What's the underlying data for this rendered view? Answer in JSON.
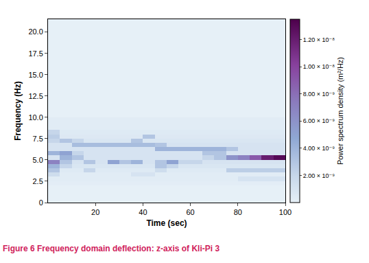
{
  "chart_data": {
    "type": "heatmap",
    "caption": "Figure 6 Frequency domain deflection: z-axis of Kli-Pi 3",
    "x_label": "Time (sec)",
    "y_label": "Frequency (Hz)",
    "x": [
      2.5,
      7.5,
      12.5,
      17.5,
      22.5,
      27.5,
      32.5,
      37.5,
      42.5,
      47.5,
      52.5,
      57.5,
      62.5,
      67.5,
      72.5,
      77.5,
      82.5,
      87.5,
      92.5,
      97.5
    ],
    "y": [
      2.25,
      2.75,
      3.25,
      3.75,
      4.25,
      4.75,
      5.25,
      5.75,
      6.25,
      6.75,
      7.25,
      7.75,
      8.25,
      8.75,
      9.25,
      9.75
    ],
    "z": [
      [
        2e-10,
        2e-10,
        2e-10,
        2e-10,
        2e-10,
        2e-10,
        2e-10,
        2e-10,
        2e-10,
        2e-10,
        2e-10,
        2e-10,
        2e-10,
        2e-10,
        2e-10,
        2e-10,
        2e-10,
        2e-10,
        2e-10,
        2e-10
      ],
      [
        3e-10,
        3e-10,
        3e-10,
        3e-10,
        3e-10,
        3e-10,
        3e-10,
        3e-10,
        3e-10,
        3e-10,
        3e-10,
        3e-10,
        3e-10,
        3e-10,
        3e-10,
        3e-10,
        1e-09,
        1e-09,
        1e-09,
        1e-09
      ],
      [
        1.5e-09,
        3e-10,
        3e-10,
        3e-10,
        3e-10,
        3e-10,
        3e-10,
        1e-09,
        1e-09,
        3e-10,
        3e-10,
        3e-10,
        3e-10,
        3e-10,
        3e-10,
        3e-10,
        3e-10,
        3e-10,
        3e-10,
        3e-10
      ],
      [
        3e-09,
        5e-10,
        5e-10,
        2e-09,
        5e-10,
        5e-10,
        5e-10,
        5e-10,
        5e-10,
        1.5e-09,
        5e-10,
        5e-10,
        5e-10,
        5e-10,
        5e-10,
        2.5e-09,
        2.5e-09,
        2.5e-09,
        2.5e-09,
        2.5e-09
      ],
      [
        4e-09,
        2e-09,
        8e-10,
        8e-10,
        8e-10,
        8e-10,
        8e-10,
        8e-10,
        8e-10,
        3e-09,
        2e-09,
        8e-10,
        8e-10,
        8e-10,
        8e-10,
        8e-10,
        8e-10,
        8e-10,
        8e-10,
        8e-10
      ],
      [
        7e-09,
        3e-09,
        1e-09,
        3e-09,
        1e-09,
        5e-09,
        3e-09,
        4e-09,
        1e-09,
        3e-09,
        5e-09,
        2e-09,
        2e-09,
        1e-09,
        1e-09,
        1e-09,
        1e-09,
        1e-09,
        1e-09,
        1e-09
      ],
      [
        1e-09,
        4e-09,
        3e-09,
        1e-09,
        1e-09,
        1e-09,
        1e-09,
        1e-09,
        1e-09,
        1e-09,
        1e-09,
        1e-09,
        1e-09,
        2e-09,
        3e-09,
        6e-09,
        7e-09,
        9e-09,
        1.2e-08,
        1.3e-08
      ],
      [
        4e-09,
        5e-09,
        2e-09,
        1e-09,
        1e-09,
        1e-09,
        1e-09,
        1e-09,
        1e-09,
        1e-09,
        1e-09,
        1e-09,
        1e-09,
        3e-09,
        3e-09,
        1e-09,
        1e-09,
        1e-09,
        1e-09,
        1e-09
      ],
      [
        1e-09,
        1e-09,
        1e-09,
        1e-09,
        1e-09,
        1e-09,
        1e-09,
        1e-09,
        1e-09,
        4e-09,
        4e-09,
        4e-09,
        4e-09,
        4e-09,
        4e-09,
        3e-09,
        1e-09,
        1e-09,
        1e-09,
        1e-09
      ],
      [
        1e-09,
        1e-09,
        3.5e-09,
        3.5e-09,
        3.5e-09,
        3.5e-09,
        3.5e-09,
        3.5e-09,
        3.5e-09,
        3e-09,
        1e-09,
        1e-09,
        1e-09,
        1e-09,
        1e-09,
        1e-09,
        1e-09,
        1e-09,
        1e-09,
        1e-09
      ],
      [
        2e-09,
        3e-09,
        2e-09,
        8e-10,
        8e-10,
        8e-10,
        8e-10,
        3e-09,
        8e-10,
        8e-10,
        8e-10,
        8e-10,
        8e-10,
        8e-10,
        8e-10,
        8e-10,
        8e-10,
        8e-10,
        8e-10,
        8e-10
      ],
      [
        2.5e-09,
        6e-10,
        6e-10,
        6e-10,
        6e-10,
        6e-10,
        6e-10,
        6e-10,
        3e-09,
        6e-10,
        6e-10,
        6e-10,
        6e-10,
        6e-10,
        6e-10,
        6e-10,
        6e-10,
        6e-10,
        6e-10,
        6e-10
      ],
      [
        2e-09,
        5e-10,
        5e-10,
        5e-10,
        5e-10,
        5e-10,
        5e-10,
        5e-10,
        5e-10,
        5e-10,
        5e-10,
        5e-10,
        5e-10,
        5e-10,
        5e-10,
        5e-10,
        5e-10,
        5e-10,
        5e-10,
        5e-10
      ],
      [
        3e-10,
        3e-10,
        3e-10,
        3e-10,
        3e-10,
        3e-10,
        3e-10,
        3e-10,
        3e-10,
        3e-10,
        3e-10,
        3e-10,
        3e-10,
        3e-10,
        3e-10,
        3e-10,
        3e-10,
        3e-10,
        3e-10,
        3e-10
      ],
      [
        3e-10,
        3e-10,
        3e-10,
        3e-10,
        3e-10,
        3e-10,
        3e-10,
        3e-10,
        3e-10,
        3e-10,
        3e-10,
        3e-10,
        3e-10,
        3e-10,
        3e-10,
        3e-10,
        3e-10,
        3e-10,
        3e-10,
        3e-10
      ],
      [
        3e-10,
        3e-10,
        3e-10,
        3e-10,
        3e-10,
        3e-10,
        3e-10,
        3e-10,
        3e-10,
        3e-10,
        3e-10,
        3e-10,
        3e-10,
        3e-10,
        3e-10,
        3e-10,
        3e-10,
        3e-10,
        3e-10,
        3e-10
      ]
    ],
    "xlim": [
      0,
      100
    ],
    "xticks": [
      20,
      40,
      60,
      80,
      100
    ],
    "ylim": [
      0,
      21.5
    ],
    "yticks": [
      0,
      {
        "value": 2.5,
        "label": "2.5"
      },
      {
        "value": 5,
        "label": "5.0"
      },
      {
        "value": 7.5,
        "label": "7.5"
      },
      {
        "value": 10,
        "label": "10.0"
      },
      {
        "value": 12.5,
        "label": "12.5"
      },
      {
        "value": 15,
        "label": "15.0"
      },
      {
        "value": 17.5,
        "label": "17.5"
      },
      {
        "value": 20,
        "label": "20.0"
      }
    ],
    "colorbar": {
      "title": "Power spectrum density (m²/Hz)",
      "range": [
        0,
        1.35e-08
      ],
      "ticks": [
        {
          "value": 2e-09,
          "label": "2.00 × 10⁻⁹"
        },
        {
          "value": 4e-09,
          "label": "4.00 × 10⁻⁹"
        },
        {
          "value": 6e-09,
          "label": "6.00 × 10⁻⁹"
        },
        {
          "value": 8e-09,
          "label": "8.00 × 10⁻⁹"
        },
        {
          "value": 1e-08,
          "label": "1.00 × 10⁻⁸"
        },
        {
          "value": 1.2e-08,
          "label": "1.20 × 10⁻⁸"
        }
      ]
    },
    "grid": false
  }
}
